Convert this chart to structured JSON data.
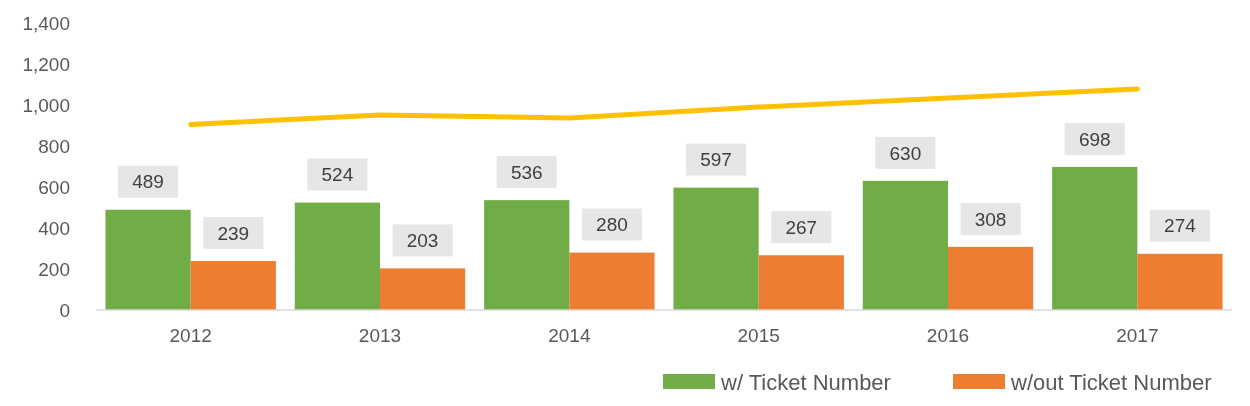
{
  "chart_data": {
    "type": "bar",
    "categories": [
      "2012",
      "2013",
      "2014",
      "2015",
      "2016",
      "2017"
    ],
    "series": [
      {
        "name": "w/ Ticket Number",
        "color": "#70ad47",
        "values": [
          489,
          524,
          536,
          597,
          630,
          698
        ],
        "value_labels": [
          "489",
          "524",
          "536",
          "597",
          "630",
          "698"
        ]
      },
      {
        "name": "w/out Ticket Number",
        "color": "#ed7d31",
        "values": [
          239,
          203,
          280,
          267,
          308,
          274
        ],
        "value_labels": [
          "239",
          "203",
          "280",
          "267",
          "308",
          "274"
        ]
      },
      {
        "type": "line",
        "color": "#ffc000",
        "values": [
          905,
          951,
          937,
          990,
          1034,
          1078
        ]
      }
    ],
    "ylim": [
      0,
      1400
    ],
    "yticks": [
      {
        "value": 0,
        "label": "0"
      },
      {
        "value": 200,
        "label": "200"
      },
      {
        "value": 400,
        "label": "400"
      },
      {
        "value": 600,
        "label": "600"
      },
      {
        "value": 800,
        "label": "800"
      },
      {
        "value": 1000,
        "label": "1,000"
      },
      {
        "value": 1200,
        "label": "1,200"
      },
      {
        "value": 1400,
        "label": "1,400"
      }
    ],
    "legend": "bottom",
    "grid": false,
    "marker": "none"
  }
}
